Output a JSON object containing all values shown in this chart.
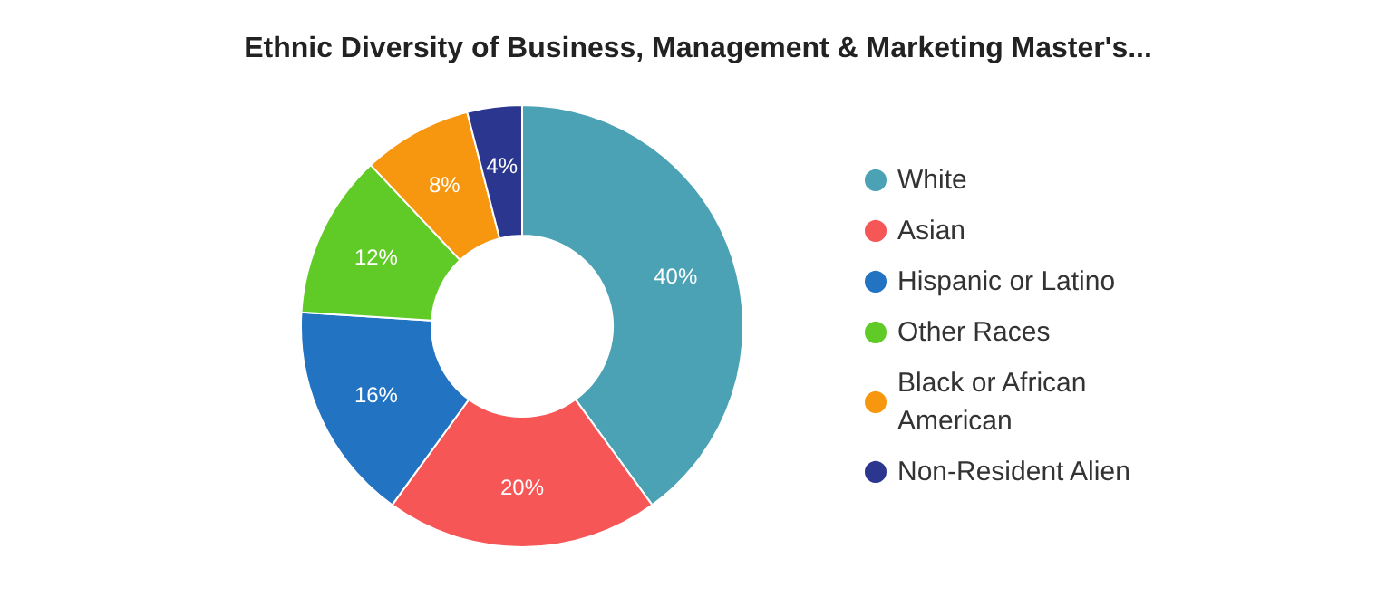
{
  "chart_data": {
    "type": "donut",
    "title": "Ethnic Diversity of Business, Management & Marketing Master's...",
    "categories": [
      "White",
      "Asian",
      "Hispanic or Latino",
      "Other Races",
      "Black or African American",
      "Non-Resident Alien"
    ],
    "values": [
      40,
      20,
      16,
      12,
      8,
      4
    ],
    "colors": [
      "#4aa2b4",
      "#f75656",
      "#2273c2",
      "#60ca27",
      "#f7960f",
      "#2b368f"
    ],
    "value_labels": [
      "40%",
      "20%",
      "16%",
      "12%",
      "8%",
      "4%"
    ],
    "legend": "right"
  }
}
